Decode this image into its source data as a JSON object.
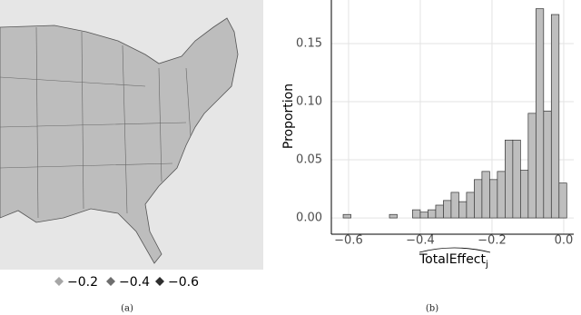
{
  "chart_data": [
    {
      "type": "map",
      "caption": "(a)",
      "legend": {
        "values": [
          {
            "value": -0.2,
            "label": "−0.2"
          },
          {
            "value": -0.4,
            "label": "−0.4"
          },
          {
            "value": -0.6,
            "label": "−0.6"
          }
        ],
        "colors": [
          "#a6a6a6",
          "#6e6e6e",
          "#2e2e2e"
        ]
      }
    },
    {
      "type": "histogram",
      "caption": "(b)",
      "ylabel": "Proportion",
      "xlabel": "TotalEffect",
      "xlabel_subscript": "j",
      "color": "#bebebe",
      "bins": [
        -0.615,
        -0.5935,
        -0.572,
        -0.5505,
        -0.529,
        -0.5075,
        -0.486,
        -0.4645,
        -0.443,
        -0.4215,
        -0.4,
        -0.3785,
        -0.357,
        -0.3355,
        -0.314,
        -0.2925,
        -0.271,
        -0.2495,
        -0.228,
        -0.2065,
        -0.185,
        -0.1635,
        -0.142,
        -0.1205,
        -0.099,
        -0.0775,
        -0.056,
        -0.0345,
        -0.013,
        0.0085
      ],
      "values": [
        0.003,
        0,
        0,
        0,
        0,
        0,
        0.003,
        0,
        0,
        0.007,
        0.005,
        0.007,
        0.011,
        0.015,
        0.022,
        0.014,
        0.022,
        0.033,
        0.04,
        0.033,
        0.04,
        0.067,
        0.067,
        0.041,
        0.09,
        0.18,
        0.092,
        0.175,
        0.03
      ],
      "xlim": [
        -0.648,
        0.028
      ],
      "ylim": [
        -0.014,
        0.1875
      ],
      "xticks": [
        {
          "value": -0.6,
          "label": "−0.6"
        },
        {
          "value": -0.4,
          "label": "−0.4"
        },
        {
          "value": -0.2,
          "label": "−0.2"
        },
        {
          "value": 0,
          "label": "0.0"
        }
      ],
      "yticks": [
        {
          "value": 0,
          "label": "0.00"
        },
        {
          "value": 0.05,
          "label": "0.05"
        },
        {
          "value": 0.1,
          "label": "0.10"
        },
        {
          "value": 0.15,
          "label": "0.15"
        }
      ],
      "grid": true
    }
  ]
}
